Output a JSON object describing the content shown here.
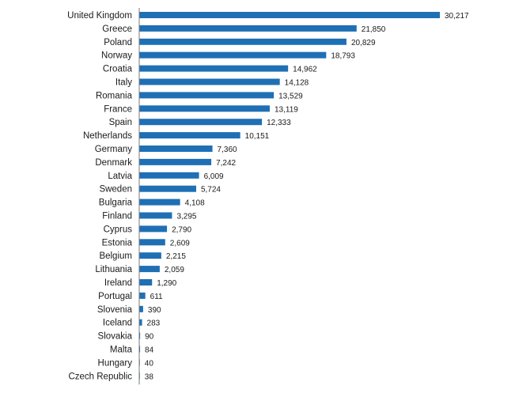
{
  "colors": {
    "bar": "#1f6fb5",
    "axis": "#7a7a7a",
    "text": "#1a1a1a",
    "background": "#ffffff"
  },
  "chart_data": {
    "type": "bar",
    "orientation": "horizontal",
    "title": "",
    "xlabel": "",
    "ylabel": "",
    "grid": false,
    "legend": "none",
    "xlim": [
      0,
      30217
    ],
    "categories": [
      "United Kingdom",
      "Greece",
      "Poland",
      "Norway",
      "Croatia",
      "Italy",
      "Romania",
      "France",
      "Spain",
      "Netherlands",
      "Germany",
      "Denmark",
      "Latvia",
      "Sweden",
      "Bulgaria",
      "Finland",
      "Cyprus",
      "Estonia",
      "Belgium",
      "Lithuania",
      "Ireland",
      "Portugal",
      "Slovenia",
      "Iceland",
      "Slovakia",
      "Malta",
      "Hungary",
      "Czech Republic"
    ],
    "values": [
      30217,
      21850,
      20829,
      18793,
      14962,
      14128,
      13529,
      13119,
      12333,
      10151,
      7360,
      7242,
      6009,
      5724,
      4108,
      3295,
      2790,
      2609,
      2215,
      2059,
      1290,
      611,
      390,
      283,
      90,
      84,
      40,
      38
    ],
    "value_labels": [
      "30,217",
      "21,850",
      "20,829",
      "18,793",
      "14,962",
      "14,128",
      "13,529",
      "13,119",
      "12,333",
      "10,151",
      "7,360",
      "7,242",
      "6,009",
      "5,724",
      "4,108",
      "3,295",
      "2,790",
      "2,609",
      "2,215",
      "2,059",
      "1,290",
      "611",
      "390",
      "283",
      "90",
      "84",
      "40",
      "38"
    ]
  }
}
